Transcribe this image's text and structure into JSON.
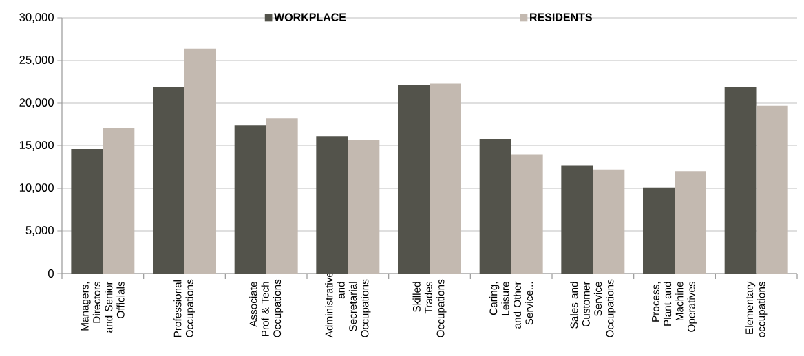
{
  "chart_data": {
    "type": "bar",
    "categories": [
      "Managers, Directors and Senior Officials",
      "Professional Occupations",
      "Associate Prof & Tech Occupations",
      "Administrative and Secretarial Occupations",
      "Skilled Trades Occupations",
      "Caring, Leisure and Other Service...",
      "Sales and Customer Service Occupations",
      "Process, Plant and Machine Operatives",
      "Elementary occupations"
    ],
    "series": [
      {
        "name": "WORKPLACE",
        "color": "#53534b",
        "values": [
          14600,
          21900,
          17400,
          16100,
          22100,
          15800,
          12700,
          10100,
          21900
        ]
      },
      {
        "name": "RESIDENTS",
        "color": "#c3b9b0",
        "values": [
          17100,
          26400,
          18200,
          15700,
          22300,
          14000,
          12200,
          12000,
          19700
        ]
      }
    ],
    "ylim": [
      0,
      30000
    ],
    "yticks": [
      {
        "value": 0,
        "label": "0"
      },
      {
        "value": 5000,
        "label": "5,000"
      },
      {
        "value": 10000,
        "label": "10,000"
      },
      {
        "value": 15000,
        "label": "15,000"
      },
      {
        "value": 20000,
        "label": "20,000"
      },
      {
        "value": 25000,
        "label": "25,000"
      },
      {
        "value": 30000,
        "label": "30,000"
      }
    ],
    "grid": "y",
    "legend": "top"
  }
}
